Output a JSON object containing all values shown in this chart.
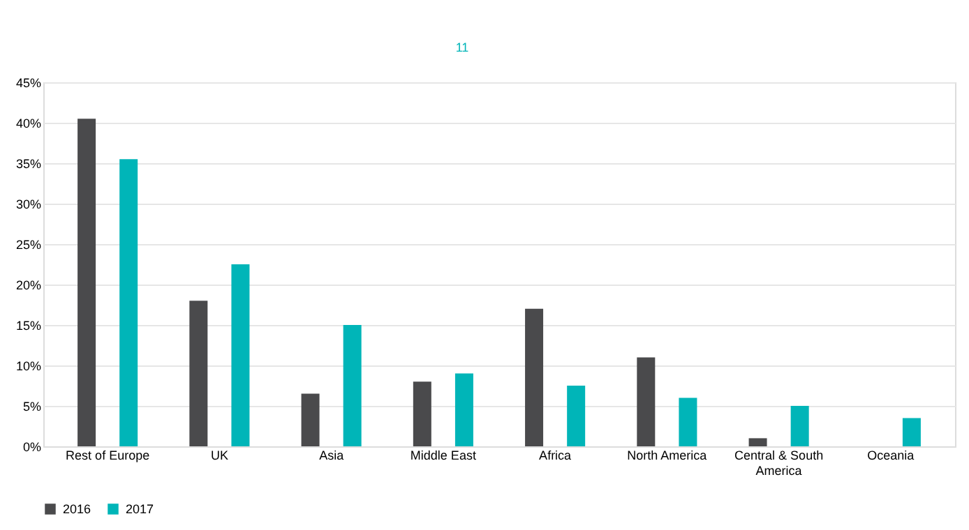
{
  "chart_data": {
    "type": "bar",
    "categories": [
      "Rest of Europe",
      "UK",
      "Asia",
      "Middle East",
      "Africa",
      "North America",
      "Central & South America",
      "Oceania"
    ],
    "series": [
      {
        "name": "2016",
        "color": "#4a4a4c",
        "values": [
          40.5,
          18,
          6.5,
          8,
          17,
          11,
          1,
          null
        ]
      },
      {
        "name": "2017",
        "color": "#00b5b8",
        "values": [
          35.5,
          22.5,
          15,
          9,
          7.5,
          6,
          5,
          3.5
        ]
      }
    ],
    "ylim": [
      0,
      45
    ],
    "yticks": [
      {
        "value": 0,
        "label": "0%"
      },
      {
        "value": 5,
        "label": "5%"
      },
      {
        "value": 10,
        "label": "10%"
      },
      {
        "value": 15,
        "label": "15%"
      },
      {
        "value": 20,
        "label": "20%"
      },
      {
        "value": 25,
        "label": "25%"
      },
      {
        "value": 30,
        "label": "30%"
      },
      {
        "value": 35,
        "label": "35%"
      },
      {
        "value": 40,
        "label": "40%"
      },
      {
        "value": 45,
        "label": "45%"
      }
    ],
    "grid": "y",
    "legend": "bottom",
    "annotations": [
      "11"
    ]
  }
}
